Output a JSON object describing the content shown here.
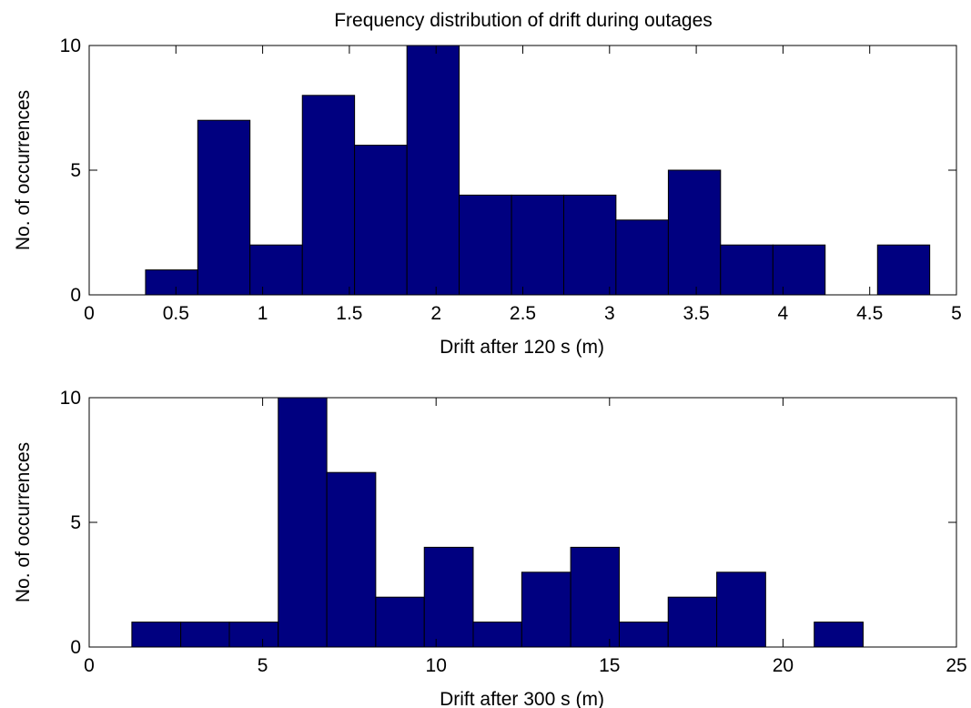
{
  "chart_data": [
    {
      "type": "bar",
      "title": "Frequency distribution of drift during outages",
      "xlabel": "Drift after 120 s (m)",
      "ylabel": "No. of occurrences",
      "xlim": [
        0,
        5
      ],
      "ylim": [
        0,
        10
      ],
      "xticks": [
        "0",
        "0.5",
        "1",
        "1.5",
        "2",
        "2.5",
        "3",
        "3.5",
        "4",
        "4.5",
        "5"
      ],
      "yticks": [
        "0",
        "5",
        "10"
      ],
      "bar_color": "#000080",
      "bins": [
        {
          "x0": 0.325,
          "x1": 0.626,
          "count": 1
        },
        {
          "x0": 0.626,
          "x1": 0.927,
          "count": 7
        },
        {
          "x0": 0.927,
          "x1": 1.229,
          "count": 2
        },
        {
          "x0": 1.229,
          "x1": 1.53,
          "count": 8
        },
        {
          "x0": 1.53,
          "x1": 1.832,
          "count": 6
        },
        {
          "x0": 1.832,
          "x1": 2.133,
          "count": 10
        },
        {
          "x0": 2.133,
          "x1": 2.435,
          "count": 4
        },
        {
          "x0": 2.435,
          "x1": 2.736,
          "count": 4
        },
        {
          "x0": 2.736,
          "x1": 3.037,
          "count": 4
        },
        {
          "x0": 3.037,
          "x1": 3.339,
          "count": 3
        },
        {
          "x0": 3.339,
          "x1": 3.64,
          "count": 5
        },
        {
          "x0": 3.64,
          "x1": 3.942,
          "count": 2
        },
        {
          "x0": 3.942,
          "x1": 4.243,
          "count": 2
        },
        {
          "x0": 4.243,
          "x1": 4.545,
          "count": 0
        },
        {
          "x0": 4.545,
          "x1": 4.846,
          "count": 2
        }
      ]
    },
    {
      "type": "bar",
      "title": "",
      "xlabel": "Drift after 300 s (m)",
      "ylabel": "No. of occurrences",
      "xlim": [
        0,
        25
      ],
      "ylim": [
        0,
        10
      ],
      "xticks": [
        "0",
        "5",
        "10",
        "15",
        "20",
        "25"
      ],
      "yticks": [
        "0",
        "5",
        "10"
      ],
      "bar_color": "#000080",
      "bins": [
        {
          "x0": 1.23,
          "x1": 2.64,
          "count": 1
        },
        {
          "x0": 2.64,
          "x1": 4.04,
          "count": 1
        },
        {
          "x0": 4.04,
          "x1": 5.45,
          "count": 1
        },
        {
          "x0": 5.45,
          "x1": 6.85,
          "count": 10
        },
        {
          "x0": 6.85,
          "x1": 8.26,
          "count": 7
        },
        {
          "x0": 8.26,
          "x1": 9.66,
          "count": 2
        },
        {
          "x0": 9.66,
          "x1": 11.07,
          "count": 4
        },
        {
          "x0": 11.07,
          "x1": 12.47,
          "count": 1
        },
        {
          "x0": 12.47,
          "x1": 13.88,
          "count": 3
        },
        {
          "x0": 13.88,
          "x1": 15.28,
          "count": 4
        },
        {
          "x0": 15.28,
          "x1": 16.69,
          "count": 1
        },
        {
          "x0": 16.69,
          "x1": 18.09,
          "count": 2
        },
        {
          "x0": 18.09,
          "x1": 19.5,
          "count": 3
        },
        {
          "x0": 19.5,
          "x1": 20.9,
          "count": 0
        },
        {
          "x0": 20.9,
          "x1": 22.31,
          "count": 1
        }
      ]
    }
  ]
}
